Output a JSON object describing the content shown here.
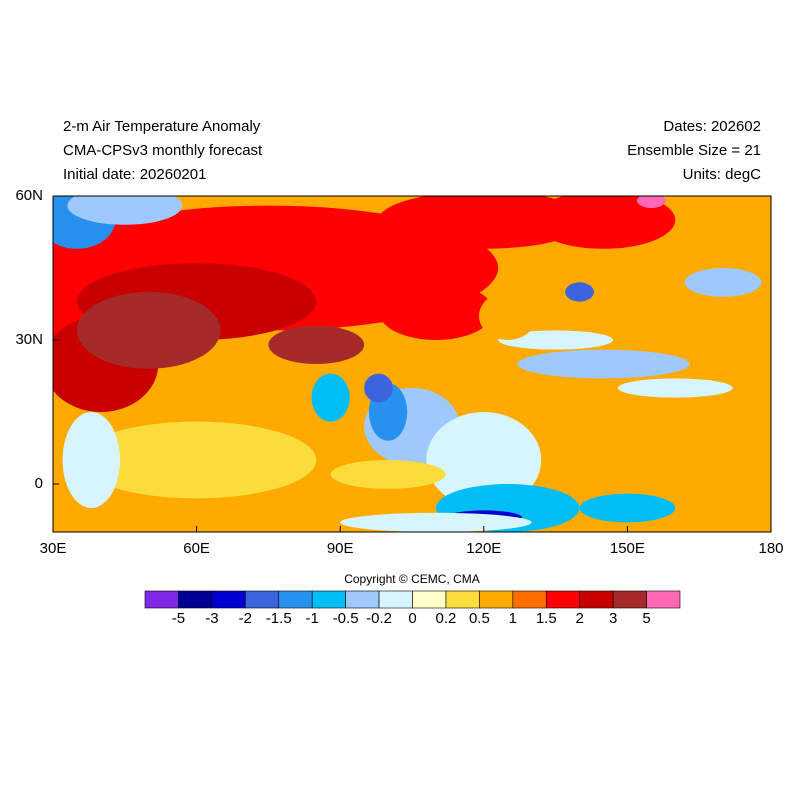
{
  "header": {
    "left": [
      "2-m Air Temperature Anomaly",
      "CMA-CPSv3 monthly forecast",
      "Initial date: 20260201"
    ],
    "right": [
      "Dates: 202602",
      "Ensemble Size = 21",
      "Units: degC"
    ]
  },
  "map": {
    "type": "map",
    "xlim": [
      30,
      180
    ],
    "ylim": [
      -10,
      60
    ],
    "xticks": [
      {
        "value": 30,
        "label": "30E"
      },
      {
        "value": 60,
        "label": "60E"
      },
      {
        "value": 90,
        "label": "90E"
      },
      {
        "value": 120,
        "label": "120E"
      },
      {
        "value": 150,
        "label": "150E"
      },
      {
        "value": 180,
        "label": "180"
      }
    ],
    "yticks": [
      {
        "value": 60,
        "label": "60N"
      },
      {
        "value": 30,
        "label": "30N"
      },
      0
    ]
  },
  "copyright": "Copyright © CEMC, CMA",
  "colorbar": {
    "levels": [
      -5,
      -3,
      -2,
      -1.5,
      -1,
      -0.5,
      -0.2,
      0,
      0.2,
      0.5,
      1,
      1.5,
      2,
      3,
      5
    ],
    "colors": [
      "#7f28e6",
      "#000096",
      "#0000d2",
      "#3c64dc",
      "#2891f0",
      "#00bef5",
      "#9ec9fa",
      "#d7f5ff",
      "#ffffc8",
      "#fadc3c",
      "#ffaa00",
      "#ff6e00",
      "#ff0000",
      "#c80000",
      "#a52a2a",
      "#ff69b4"
    ]
  }
}
